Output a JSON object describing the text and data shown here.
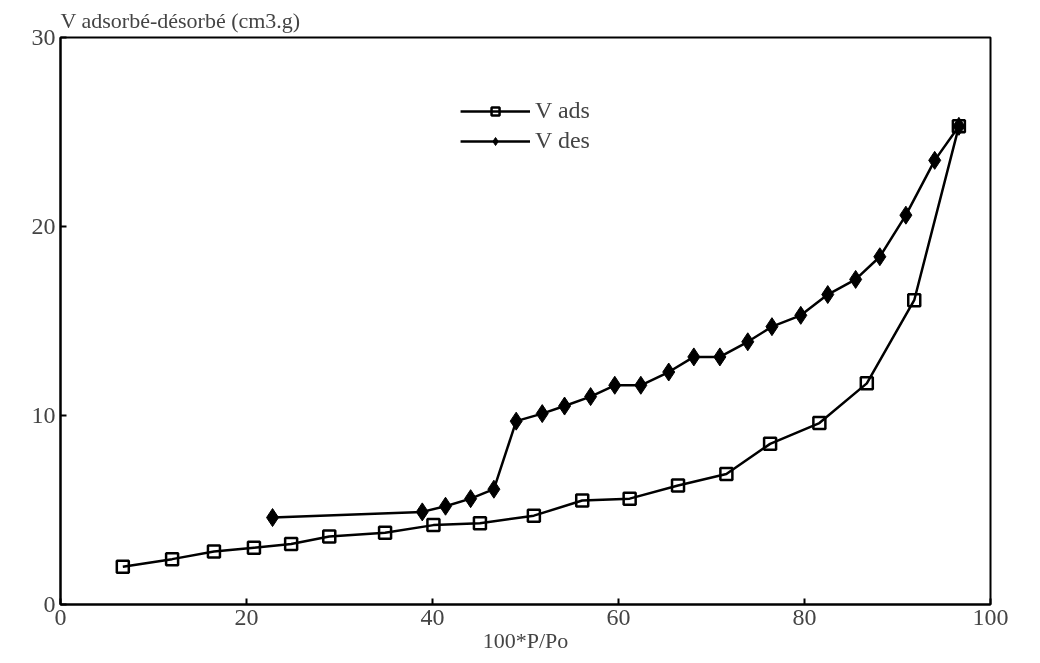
{
  "chart_data": {
    "type": "line",
    "xlabel": "100*P/Po",
    "ylabel": "V adsorbé-désorbé (cm3.g)",
    "xlim": [
      0,
      100
    ],
    "ylim": [
      0,
      30
    ],
    "xticks": [
      0,
      20,
      40,
      60,
      80,
      100
    ],
    "yticks": [
      0,
      10,
      20,
      30
    ],
    "grid": false,
    "legend": "top",
    "line_style": "solid",
    "series": [
      {
        "name": "V ads",
        "color": "#000000",
        "marker": "square",
        "x": [
          6.7,
          12.0,
          16.5,
          20.8,
          24.8,
          28.9,
          34.9,
          40.1,
          45.1,
          50.9,
          56.1,
          61.2,
          66.4,
          71.6,
          76.3,
          81.6,
          86.7,
          91.8,
          96.6
        ],
        "values": [
          2.0,
          2.4,
          2.8,
          3.0,
          3.2,
          3.6,
          3.8,
          4.2,
          4.3,
          4.7,
          5.5,
          5.6,
          6.3,
          6.9,
          8.5,
          9.6,
          11.7,
          16.1,
          25.3
        ]
      },
      {
        "name": "V des",
        "color": "#000000",
        "marker": "diamond",
        "x": [
          22.8,
          38.9,
          41.4,
          44.1,
          46.6,
          49.0,
          51.8,
          54.2,
          57.0,
          59.6,
          62.4,
          65.4,
          68.1,
          70.9,
          73.9,
          76.5,
          79.6,
          82.5,
          85.5,
          88.1,
          90.9,
          94.0,
          96.6
        ],
        "values": [
          4.6,
          4.9,
          5.2,
          5.6,
          6.1,
          9.7,
          10.1,
          10.5,
          11.0,
          11.6,
          11.6,
          12.3,
          13.1,
          13.1,
          13.9,
          14.7,
          15.3,
          16.4,
          17.2,
          18.4,
          20.6,
          23.5,
          25.3
        ]
      }
    ]
  }
}
